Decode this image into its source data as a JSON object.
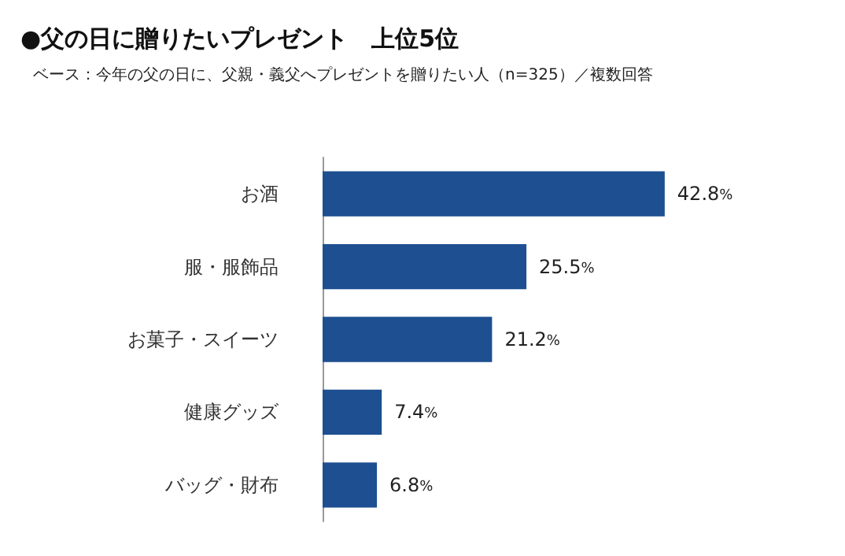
{
  "chart_data": {
    "type": "bar",
    "orientation": "horizontal",
    "title": "●父の日に贈りたいプレゼント　上位5位",
    "subtitle": "ベース：今年の父の日に、父親・義父へプレゼントを贈りたい人（n=325）／複数回答",
    "categories": [
      "お酒",
      "服・服飾品",
      "お菓子・スイーツ",
      "健康グッズ",
      "バッグ・財布"
    ],
    "values": [
      42.8,
      25.5,
      21.2,
      7.4,
      6.8
    ],
    "value_labels": [
      "42.8%",
      "25.5%",
      "21.2%",
      "7.4%",
      "6.8%"
    ],
    "color": "#1d4f91"
  }
}
